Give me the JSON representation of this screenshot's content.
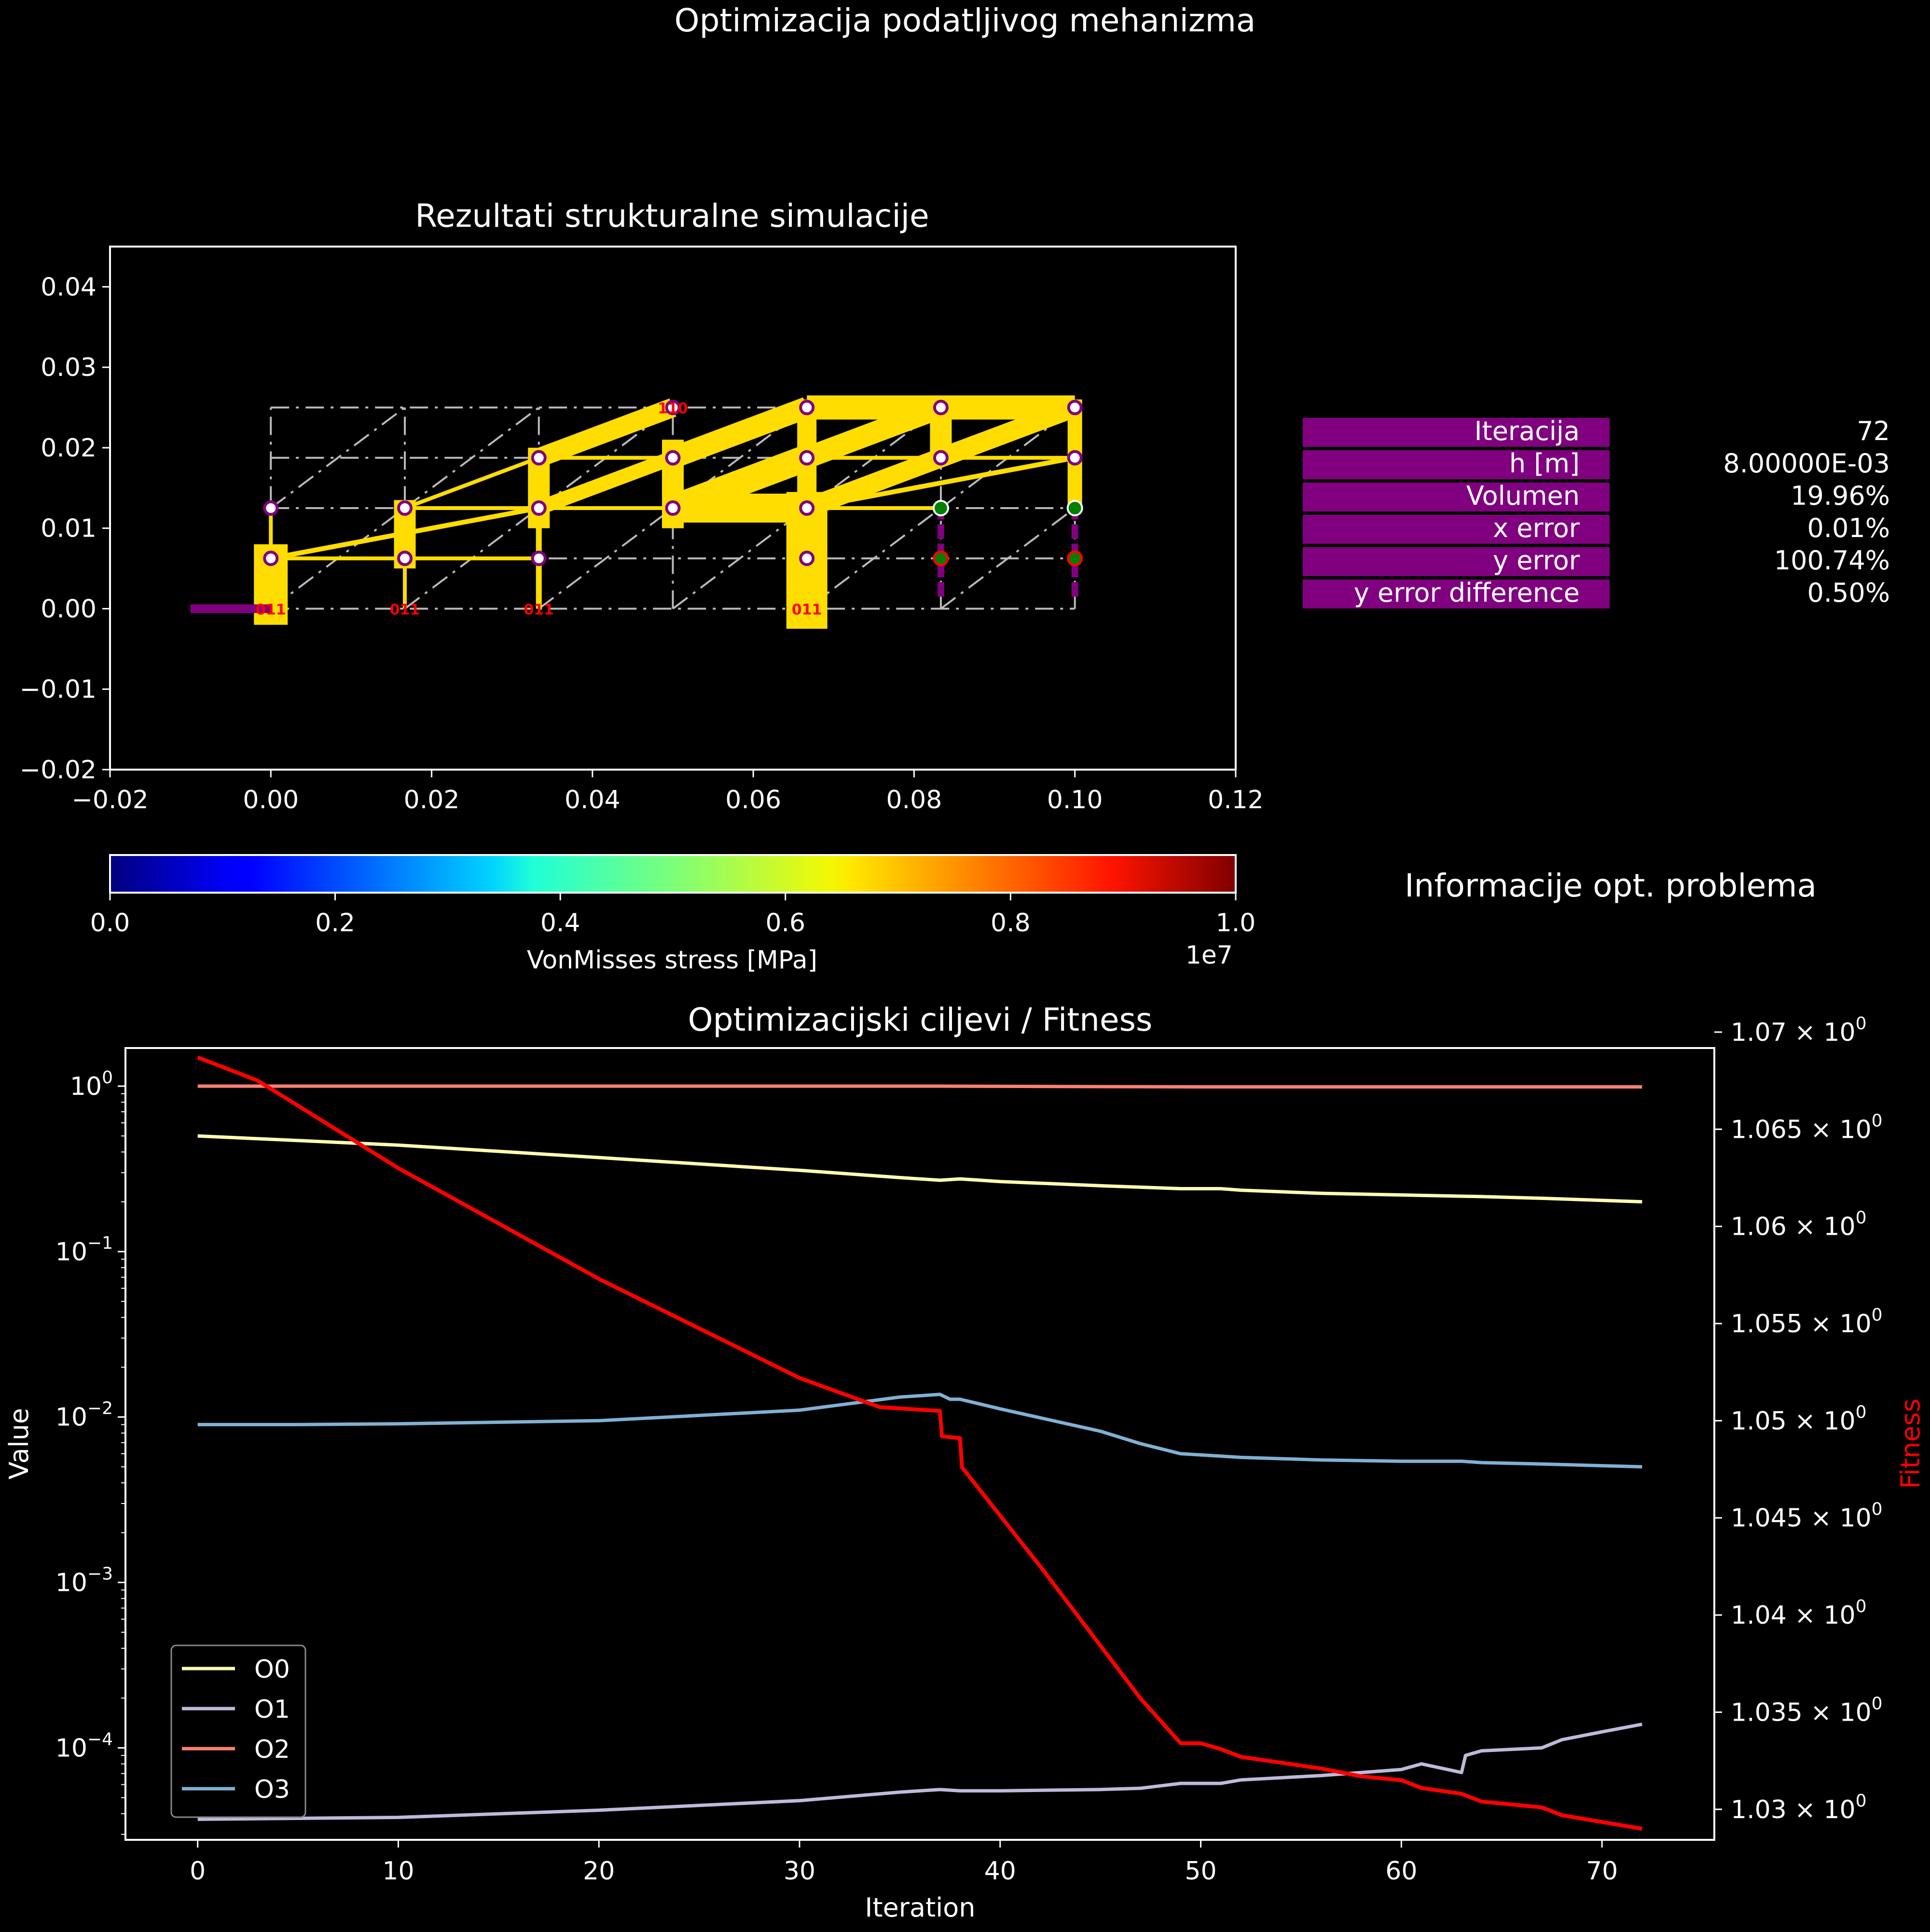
{
  "figure": {
    "title": "Optimizacija podatljivog mehanizma"
  },
  "structure_panel": {
    "title": "Rezultati strukturalne simulacije",
    "xlim": [
      -0.02,
      0.12
    ],
    "ylim": [
      -0.02,
      0.045
    ],
    "xticks": [
      -0.02,
      0.0,
      0.02,
      0.04,
      0.06,
      0.08,
      0.1,
      0.12
    ],
    "xtick_labels": [
      "−0.02",
      "0.00",
      "0.02",
      "0.04",
      "0.06",
      "0.08",
      "0.10",
      "0.12"
    ],
    "yticks": [
      -0.02,
      -0.01,
      0.0,
      0.01,
      0.02,
      0.03,
      0.04
    ],
    "ytick_labels": [
      "−0.02",
      "−0.01",
      "0.00",
      "0.01",
      "0.02",
      "0.03",
      "0.04"
    ],
    "grid_x": [
      0.0,
      0.016667,
      0.033333,
      0.05,
      0.066667,
      0.083333,
      0.1
    ],
    "grid_y": [
      0.0,
      0.00625,
      0.0125,
      0.01875,
      0.025
    ],
    "node_labels": [
      {
        "x": 0.0,
        "y": 0.0,
        "text": "011"
      },
      {
        "x": 0.016667,
        "y": 0.0,
        "text": "011"
      },
      {
        "x": 0.033333,
        "y": 0.0,
        "text": "011"
      },
      {
        "x": 0.066667,
        "y": 0.0,
        "text": "011"
      },
      {
        "x": 0.05,
        "y": 0.025,
        "text": "110"
      }
    ],
    "member_color": "#ffdd00",
    "support_color": "#800080",
    "label_color": "#ff0000"
  },
  "colorbar": {
    "label": "VonMisses stress [MPa]",
    "ticks": [
      0.0,
      0.2,
      0.4,
      0.6,
      0.8,
      1.0
    ],
    "tick_labels": [
      "0.0",
      "0.2",
      "0.4",
      "0.6",
      "0.8",
      "1.0"
    ],
    "offset_label": "1e7",
    "colormap": "jet"
  },
  "info_table": {
    "title": "Informacije opt. problema",
    "rows": [
      {
        "label": "Iteracija",
        "value": "72"
      },
      {
        "label": "h [m]",
        "value": "8.00000E-03"
      },
      {
        "label": "Volumen",
        "value": "19.96%"
      },
      {
        "label": "x error",
        "value": "0.01%"
      },
      {
        "label": "y error",
        "value": "100.74%"
      },
      {
        "label": "y error difference",
        "value": "0.50%"
      }
    ],
    "label_bg": "#800080"
  },
  "chart_data": {
    "type": "line",
    "title": "Optimizacijski ciljevi / Fitness",
    "xlabel": "Iteration",
    "ylabel": "Value",
    "y2label": "Fitness",
    "y2label_color": "#ff0000",
    "xlim": [
      -3.6,
      75.6
    ],
    "xticks": [
      0,
      10,
      20,
      30,
      40,
      50,
      60,
      70
    ],
    "yscale": "log",
    "ylim": [
      2.78e-05,
      1.7
    ],
    "yticks": [
      0.0001,
      0.001,
      0.01,
      0.1,
      1
    ],
    "ytick_bases": [
      "10",
      "10",
      "10",
      "10",
      "10"
    ],
    "ytick_exps": [
      "−4",
      "−3",
      "−2",
      "−1",
      "0"
    ],
    "y2lim": [
      1.02843,
      1.06918
    ],
    "y2ticks": [
      1.03,
      1.035,
      1.04,
      1.045,
      1.05,
      1.055,
      1.06,
      1.065,
      1.07
    ],
    "y2tick_mantissas": [
      "1.03",
      "1.035",
      "1.04",
      "1.045",
      "1.05",
      "1.055",
      "1.06",
      "1.065",
      "1.07"
    ],
    "y2tick_exp": "0",
    "legend_position": "lower left",
    "series": [
      {
        "name": "O0",
        "color": "#ffffb3",
        "axis": "left",
        "x": [
          0,
          10,
          20,
          30,
          35,
          37,
          38,
          40,
          45,
          49,
          51,
          52,
          56,
          60,
          64,
          67,
          72
        ],
        "values": [
          0.5,
          0.44,
          0.37,
          0.31,
          0.28,
          0.27,
          0.275,
          0.265,
          0.25,
          0.24,
          0.24,
          0.235,
          0.225,
          0.22,
          0.215,
          0.21,
          0.2
        ]
      },
      {
        "name": "O1",
        "color": "#bebada",
        "axis": "left",
        "x": [
          0,
          10,
          20,
          30,
          35,
          37,
          38,
          40,
          45,
          47,
          49,
          51,
          52,
          56,
          60,
          61,
          63,
          63.2,
          64,
          67,
          68,
          70,
          72
        ],
        "values": [
          3.7e-05,
          3.8e-05,
          4.2e-05,
          4.8e-05,
          5.4e-05,
          5.6e-05,
          5.5e-05,
          5.5e-05,
          5.6e-05,
          5.7e-05,
          6.1e-05,
          6.1e-05,
          6.4e-05,
          6.8e-05,
          7.4e-05,
          8e-05,
          7.1e-05,
          9e-05,
          9.6e-05,
          0.0001,
          0.000112,
          0.000125,
          0.000139
        ]
      },
      {
        "name": "O2",
        "color": "#fb8072",
        "axis": "left",
        "x": [
          0,
          20,
          37,
          50,
          72
        ],
        "values": [
          1.0,
          1.0,
          1.0,
          0.99,
          0.99
        ]
      },
      {
        "name": "O3",
        "color": "#80b1d3",
        "axis": "left",
        "x": [
          0,
          5,
          10,
          20,
          30,
          35,
          37,
          37.5,
          38,
          40,
          45,
          47,
          49,
          51,
          52,
          56,
          60,
          63,
          64,
          67,
          72
        ],
        "values": [
          0.009,
          0.009,
          0.0091,
          0.0095,
          0.011,
          0.0132,
          0.0137,
          0.0128,
          0.0128,
          0.0112,
          0.0082,
          0.0069,
          0.006,
          0.0058,
          0.0057,
          0.0055,
          0.0054,
          0.0054,
          0.0053,
          0.0052,
          0.005
        ]
      },
      {
        "name": "",
        "color": "#ff0000",
        "axis": "right",
        "x": [
          0,
          3,
          10,
          20,
          30,
          34,
          37,
          37.1,
          38,
          38.1,
          42,
          47,
          49,
          50,
          51,
          52,
          56,
          58,
          60,
          61,
          63,
          64,
          67,
          68,
          72
        ],
        "values": [
          1.0687,
          1.0675,
          1.063,
          1.0573,
          1.0522,
          1.0507,
          1.0505,
          1.0492,
          1.0491,
          1.0476,
          1.0425,
          1.0357,
          1.0334,
          1.0334,
          1.0331,
          1.0327,
          1.0321,
          1.0317,
          1.0315,
          1.0311,
          1.0308,
          1.0304,
          1.0301,
          1.0297,
          1.029
        ]
      }
    ]
  }
}
